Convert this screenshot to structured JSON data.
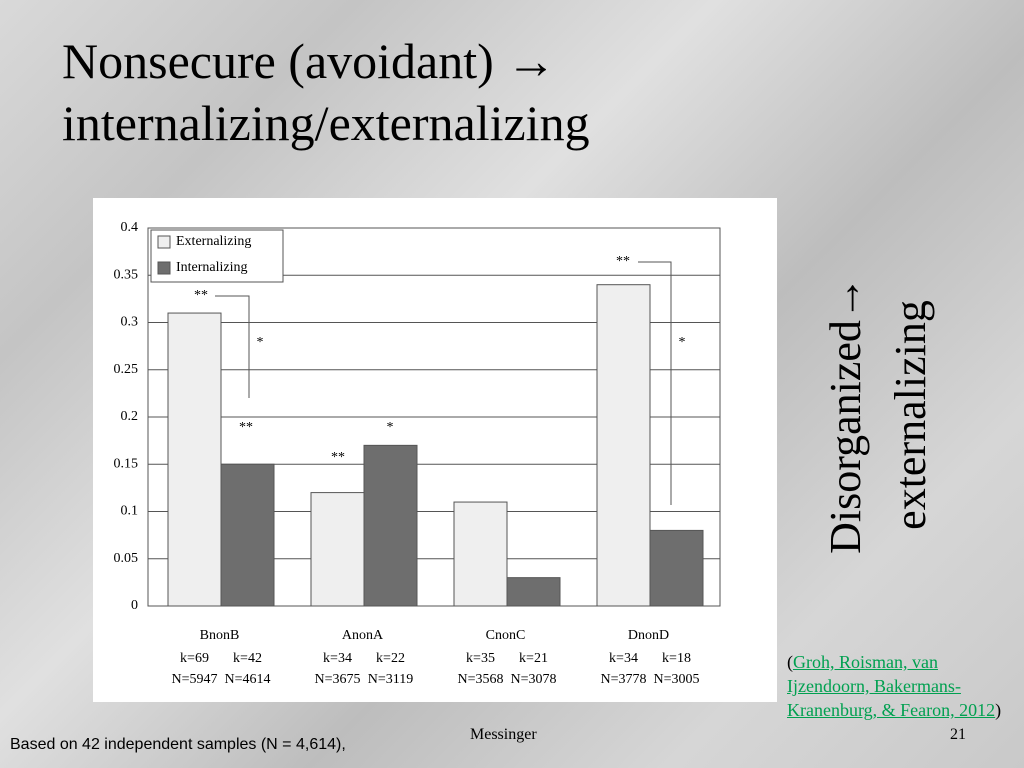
{
  "title": [
    "Nonsecure (avoidant) →",
    "internalizing/externalizing"
  ],
  "side_note": [
    "Disorganized→",
    "externalizing"
  ],
  "citation": {
    "open": "(",
    "link": "Groh, Roisman, van Ijzendoorn, Bakermans-Kranenburg, & Fearon, 2012",
    "close": ")"
  },
  "footer": {
    "note": "Based on 42 independent samples (N = 4,614),",
    "author": "Messinger",
    "page": "21"
  },
  "chart_data": {
    "type": "bar",
    "categories": [
      "BnonB",
      "AnonA",
      "CnonC",
      "DnonD"
    ],
    "sample_sizes": [
      {
        "k": [
          "k=69",
          "k=42"
        ],
        "N": [
          "N=5947",
          "N=4614"
        ]
      },
      {
        "k": [
          "k=34",
          "k=22"
        ],
        "N": [
          "N=3675",
          "N=3119"
        ]
      },
      {
        "k": [
          "k=35",
          "k=21"
        ],
        "N": [
          "N=3568",
          "N=3078"
        ]
      },
      {
        "k": [
          "k=34",
          "k=18"
        ],
        "N": [
          "N=3778",
          "N=3005"
        ]
      }
    ],
    "series": [
      {
        "name": "Externalizing",
        "color": "#efefef",
        "values": [
          0.31,
          0.12,
          0.11,
          0.34
        ]
      },
      {
        "name": "Internalizing",
        "color": "#6e6e6e",
        "values": [
          0.15,
          0.17,
          0.03,
          0.08
        ]
      }
    ],
    "annotations": [
      "**",
      "*",
      "**",
      "**",
      "*",
      "**",
      "*"
    ],
    "ylim": [
      0,
      0.4
    ],
    "yticks": [
      0,
      0.05,
      0.1,
      0.15,
      0.2,
      0.25,
      0.3,
      0.35,
      0.4
    ],
    "grid": true,
    "legend": "top-left"
  }
}
